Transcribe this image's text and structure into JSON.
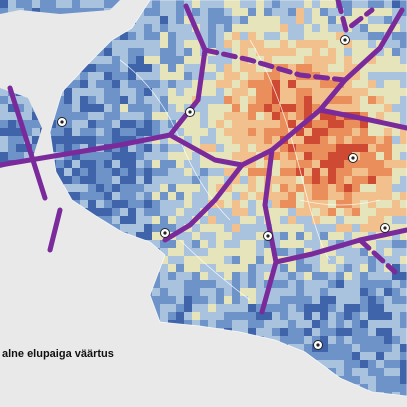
{
  "legend": {
    "title": "alne elupaiga väärtus"
  }
}
